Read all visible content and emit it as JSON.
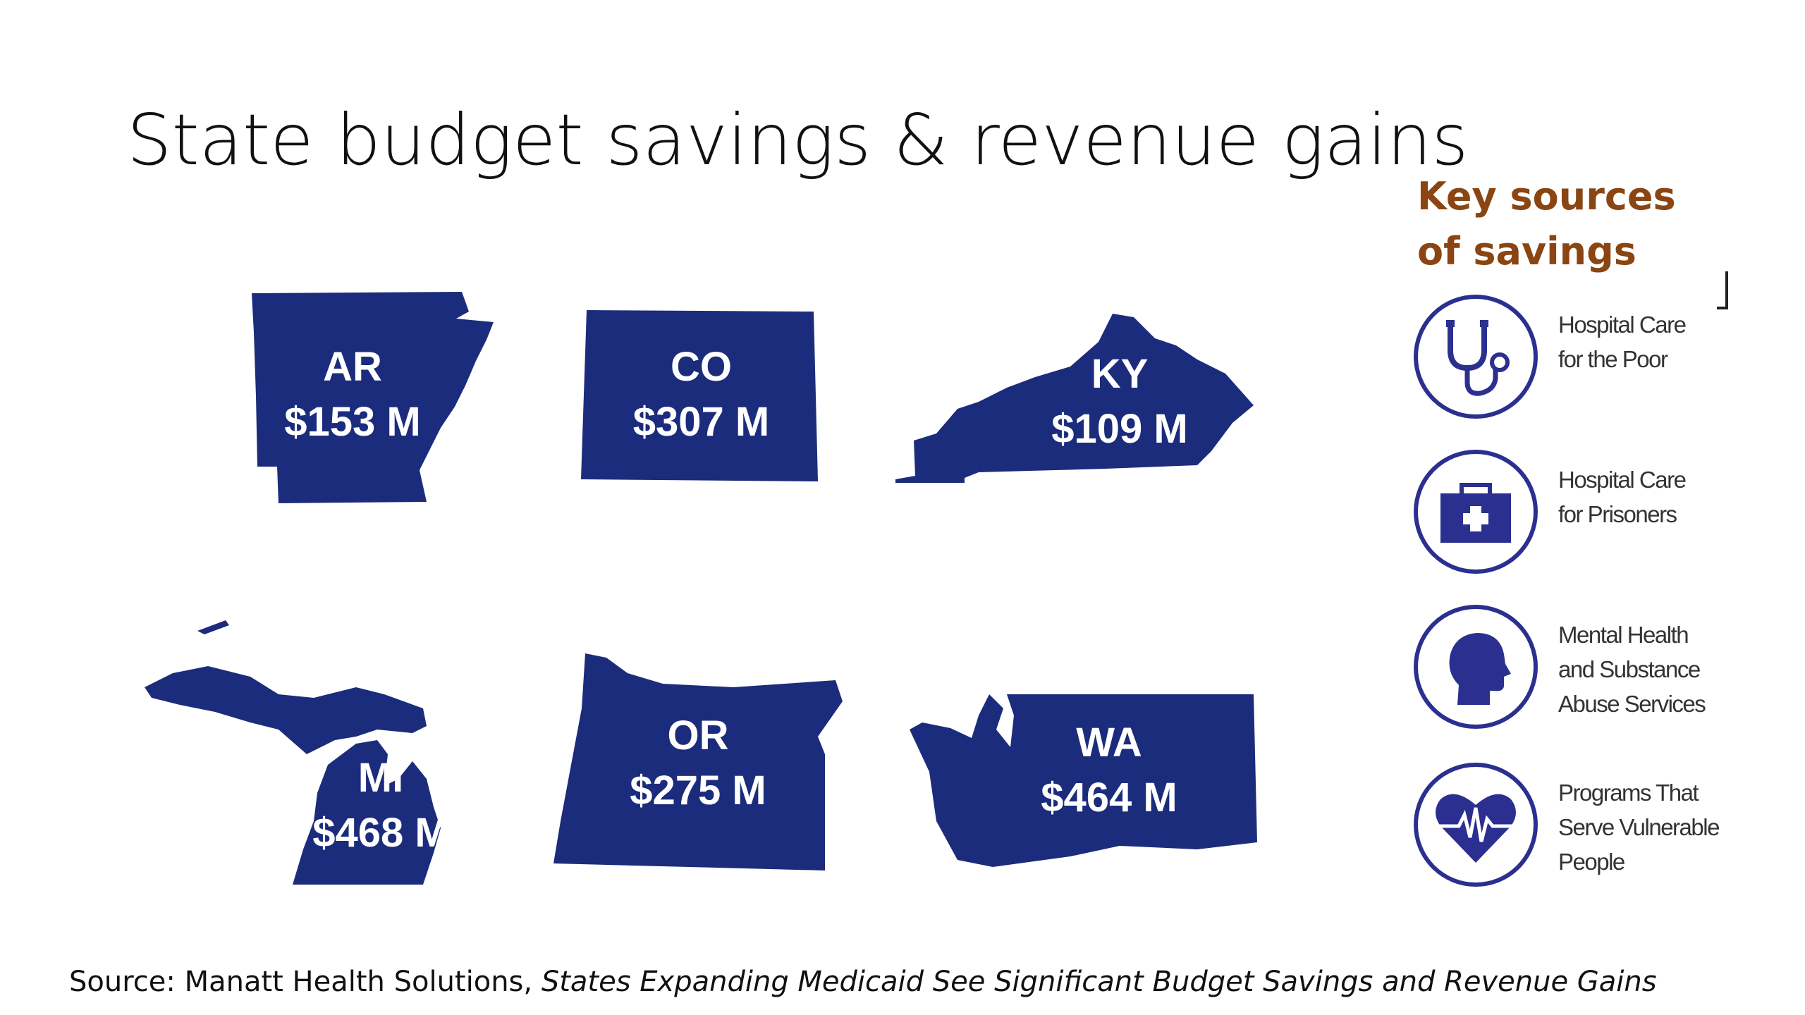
{
  "slide": {
    "title": "State budget savings & revenue gains"
  },
  "states": [
    {
      "abbr": "AR",
      "amount": "$153 M"
    },
    {
      "abbr": "CO",
      "amount": "$307 M"
    },
    {
      "abbr": "KY",
      "amount": "$109 M"
    },
    {
      "abbr": "MI",
      "amount": "$468 M"
    },
    {
      "abbr": "OR",
      "amount": "$275 M"
    },
    {
      "abbr": "WA",
      "amount": "$464 M"
    }
  ],
  "colors": {
    "state_fill": "#1c2c7c",
    "sidebar_title": "#8a4512",
    "icon_accent": "#2b2f8f"
  },
  "sidebar": {
    "title": "Key sources of savings",
    "items": [
      {
        "icon": "stethoscope-icon",
        "label_line1": "Hospital Care",
        "label_line2": "for the Poor",
        "label_line3": ""
      },
      {
        "icon": "medical-kit-icon",
        "label_line1": "Hospital Care",
        "label_line2": "for Prisoners",
        "label_line3": ""
      },
      {
        "icon": "head-icon",
        "label_line1": "Mental Health",
        "label_line2": "and Substance",
        "label_line3": "Abuse Services"
      },
      {
        "icon": "heart-pulse-icon",
        "label_line1": "Programs That",
        "label_line2": "Serve Vulnerable",
        "label_line3": "People"
      }
    ]
  },
  "source": {
    "prefix": "Source: Manatt Health Solutions, ",
    "citation": "States Expanding Medicaid See Significant Budget Savings and Revenue Gains"
  }
}
